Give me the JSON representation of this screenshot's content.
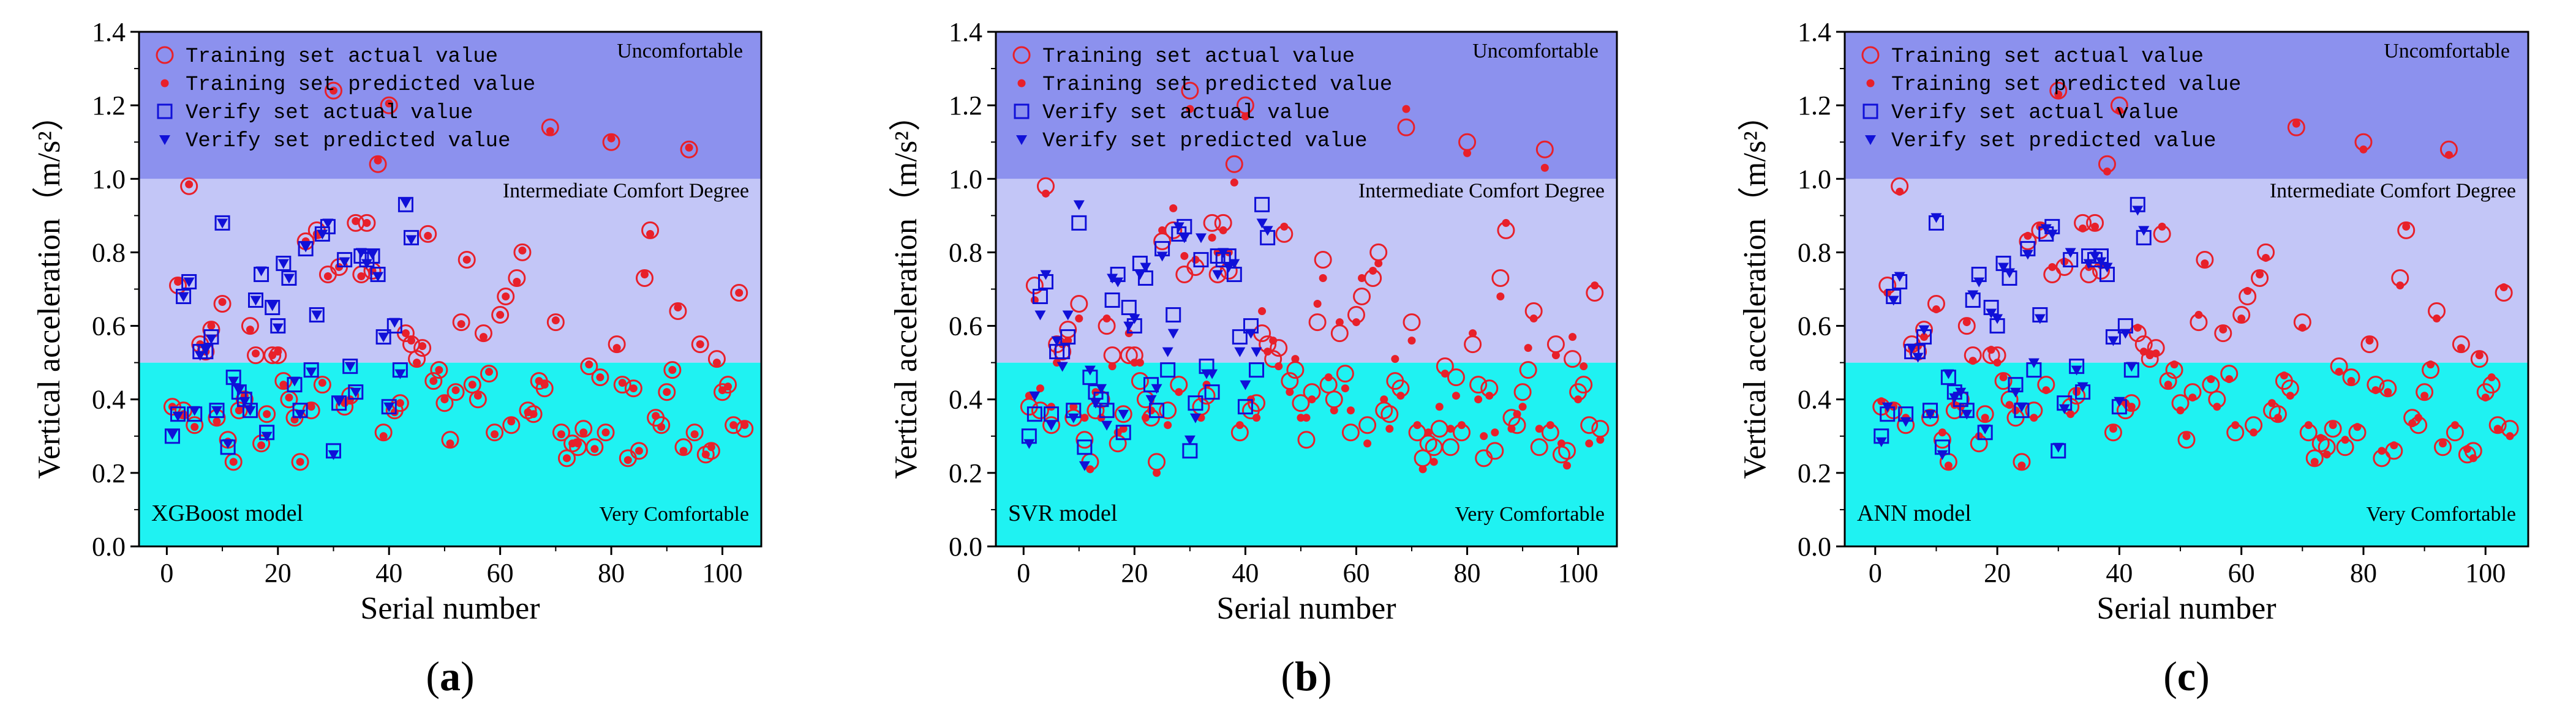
{
  "chart_data": [
    {
      "type": "scatter",
      "panel": "(a)",
      "panel_letter": "a",
      "model": "XGBoost model",
      "xlabel": "Serial number",
      "ylabel": "Vertical acceleration（m/s²）",
      "xlim": [
        -5,
        107
      ],
      "ylim": [
        0,
        1.4
      ],
      "xticks": [
        0,
        20,
        40,
        60,
        80,
        100
      ],
      "yticks": [
        0.0,
        0.2,
        0.4,
        0.6,
        0.8,
        1.0,
        1.2,
        1.4
      ],
      "zones": [
        {
          "label": "Very Comfortable",
          "from": 0.0,
          "to": 0.5,
          "color": "#1ff2f2"
        },
        {
          "label": "Intermediate Comfort Degree",
          "from": 0.5,
          "to": 1.0,
          "color": "#c3c6f7"
        },
        {
          "label": "Uncomfortable",
          "from": 1.0,
          "to": 1.4,
          "color": "#8c91ee"
        }
      ],
      "legend": {
        "position": "top-left",
        "entries": [
          "Training set actual value",
          "Training set predicted value",
          "Verify set actual value",
          "Verify set predicted value"
        ]
      },
      "pred_offsets": [
        0,
        0.01,
        -0.01,
        0.005,
        -0.005,
        0.0
      ]
    },
    {
      "type": "scatter",
      "panel": "(b)",
      "panel_letter": "b",
      "model": "SVR model",
      "xlabel": "Serial number",
      "ylabel": "Vertical acceleration（m/s²）",
      "xlim": [
        -5,
        107
      ],
      "ylim": [
        0,
        1.4
      ],
      "xticks": [
        0,
        20,
        40,
        60,
        80,
        100
      ],
      "yticks": [
        0.0,
        0.2,
        0.4,
        0.6,
        0.8,
        1.0,
        1.2,
        1.4
      ],
      "zones": [
        {
          "label": "Very Comfortable",
          "from": 0.0,
          "to": 0.5,
          "color": "#1ff2f2"
        },
        {
          "label": "Intermediate Comfort Degree",
          "from": 0.5,
          "to": 1.0,
          "color": "#c3c6f7"
        },
        {
          "label": "Uncomfortable",
          "from": 1.0,
          "to": 1.4,
          "color": "#8c91ee"
        }
      ],
      "legend": {
        "position": "top-left",
        "entries": [
          "Training set actual value",
          "Training set predicted value",
          "Verify set actual value",
          "Verify set predicted value"
        ]
      },
      "pred_offsets": [
        0.03,
        -0.04,
        0.06,
        -0.02,
        0.05,
        -0.05,
        0.02,
        -0.03
      ]
    },
    {
      "type": "scatter",
      "panel": "(c)",
      "panel_letter": "c",
      "model": "ANN model",
      "xlabel": "Serial number",
      "ylabel": "Vertical acceleration（m/s²）",
      "xlim": [
        -5,
        107
      ],
      "ylim": [
        0,
        1.4
      ],
      "xticks": [
        0,
        20,
        40,
        60,
        80,
        100
      ],
      "yticks": [
        0.0,
        0.2,
        0.4,
        0.6,
        0.8,
        1.0,
        1.2,
        1.4
      ],
      "zones": [
        {
          "label": "Very Comfortable",
          "from": 0.0,
          "to": 0.5,
          "color": "#1ff2f2"
        },
        {
          "label": "Intermediate Comfort Degree",
          "from": 0.5,
          "to": 1.0,
          "color": "#c3c6f7"
        },
        {
          "label": "Uncomfortable",
          "from": 1.0,
          "to": 1.4,
          "color": "#8c91ee"
        }
      ],
      "legend": {
        "position": "top-left",
        "entries": [
          "Training set actual value",
          "Training set predicted value",
          "Verify set actual value",
          "Verify set predicted value"
        ]
      },
      "pred_offsets": [
        0.015,
        -0.02,
        0.01,
        -0.015,
        0.02,
        -0.01
      ]
    }
  ],
  "training_actual": [
    [
      1,
      0.38
    ],
    [
      2,
      0.71
    ],
    [
      3,
      0.37
    ],
    [
      4,
      0.98
    ],
    [
      5,
      0.33
    ],
    [
      6,
      0.55
    ],
    [
      7,
      0.53
    ],
    [
      8,
      0.59
    ],
    [
      9,
      0.35
    ],
    [
      10,
      0.66
    ],
    [
      11,
      0.29
    ],
    [
      12,
      0.23
    ],
    [
      13,
      0.37
    ],
    [
      14,
      0.4
    ],
    [
      15,
      0.6
    ],
    [
      16,
      0.52
    ],
    [
      17,
      0.28
    ],
    [
      18,
      0.36
    ],
    [
      19,
      0.52
    ],
    [
      20,
      0.52
    ],
    [
      21,
      0.45
    ],
    [
      22,
      0.4
    ],
    [
      23,
      0.35
    ],
    [
      24,
      0.23
    ],
    [
      25,
      0.83
    ],
    [
      26,
      0.37
    ],
    [
      27,
      0.86
    ],
    [
      28,
      0.44
    ],
    [
      29,
      0.74
    ],
    [
      30,
      1.24
    ],
    [
      31,
      0.76
    ],
    [
      32,
      0.38
    ],
    [
      33,
      0.41
    ],
    [
      34,
      0.88
    ],
    [
      35,
      0.74
    ],
    [
      36,
      0.88
    ],
    [
      37,
      0.75
    ],
    [
      38,
      1.04
    ],
    [
      39,
      0.31
    ],
    [
      40,
      1.2
    ],
    [
      41,
      0.37
    ],
    [
      42,
      0.39
    ],
    [
      43,
      0.58
    ],
    [
      44,
      0.55
    ],
    [
      45,
      0.51
    ],
    [
      46,
      0.54
    ],
    [
      47,
      0.85
    ],
    [
      48,
      0.45
    ],
    [
      49,
      0.48
    ],
    [
      50,
      0.39
    ],
    [
      51,
      0.29
    ],
    [
      52,
      0.42
    ],
    [
      53,
      0.61
    ],
    [
      54,
      0.78
    ],
    [
      55,
      0.44
    ],
    [
      56,
      0.4
    ],
    [
      57,
      0.58
    ],
    [
      58,
      0.47
    ],
    [
      59,
      0.31
    ],
    [
      60,
      0.63
    ],
    [
      61,
      0.68
    ],
    [
      62,
      0.33
    ],
    [
      63,
      0.73
    ],
    [
      64,
      0.8
    ],
    [
      65,
      0.37
    ],
    [
      66,
      0.36
    ],
    [
      67,
      0.45
    ],
    [
      68,
      0.43
    ],
    [
      69,
      1.14
    ],
    [
      70,
      0.61
    ],
    [
      71,
      0.31
    ],
    [
      72,
      0.24
    ],
    [
      73,
      0.28
    ],
    [
      74,
      0.27
    ],
    [
      75,
      0.32
    ],
    [
      76,
      0.49
    ],
    [
      77,
      0.27
    ],
    [
      78,
      0.46
    ],
    [
      79,
      0.31
    ],
    [
      80,
      1.1
    ],
    [
      81,
      0.55
    ],
    [
      82,
      0.44
    ],
    [
      83,
      0.24
    ],
    [
      84,
      0.43
    ],
    [
      85,
      0.26
    ],
    [
      86,
      0.73
    ],
    [
      87,
      0.86
    ],
    [
      88,
      0.35
    ],
    [
      89,
      0.33
    ],
    [
      90,
      0.42
    ],
    [
      91,
      0.48
    ],
    [
      92,
      0.64
    ],
    [
      93,
      0.27
    ],
    [
      94,
      1.08
    ],
    [
      95,
      0.31
    ],
    [
      96,
      0.55
    ],
    [
      97,
      0.25
    ],
    [
      98,
      0.26
    ],
    [
      99,
      0.51
    ],
    [
      100,
      0.42
    ],
    [
      101,
      0.44
    ],
    [
      102,
      0.33
    ],
    [
      103,
      0.69
    ],
    [
      104,
      0.32
    ]
  ],
  "verify_actual": [
    [
      1,
      0.3
    ],
    [
      2,
      0.36
    ],
    [
      3,
      0.68
    ],
    [
      4,
      0.72
    ],
    [
      5,
      0.36
    ],
    [
      6,
      0.53
    ],
    [
      7,
      0.53
    ],
    [
      8,
      0.57
    ],
    [
      9,
      0.37
    ],
    [
      10,
      0.88
    ],
    [
      11,
      0.27
    ],
    [
      12,
      0.46
    ],
    [
      13,
      0.42
    ],
    [
      14,
      0.4
    ],
    [
      15,
      0.37
    ],
    [
      16,
      0.67
    ],
    [
      17,
      0.74
    ],
    [
      18,
      0.31
    ],
    [
      19,
      0.65
    ],
    [
      20,
      0.6
    ],
    [
      21,
      0.77
    ],
    [
      22,
      0.73
    ],
    [
      23,
      0.44
    ],
    [
      24,
      0.37
    ],
    [
      25,
      0.81
    ],
    [
      26,
      0.48
    ],
    [
      27,
      0.63
    ],
    [
      28,
      0.85
    ],
    [
      29,
      0.87
    ],
    [
      30,
      0.26
    ],
    [
      31,
      0.39
    ],
    [
      32,
      0.78
    ],
    [
      33,
      0.49
    ],
    [
      34,
      0.42
    ],
    [
      35,
      0.79
    ],
    [
      36,
      0.78
    ],
    [
      37,
      0.79
    ],
    [
      38,
      0.74
    ],
    [
      39,
      0.57
    ],
    [
      40,
      0.38
    ],
    [
      41,
      0.6
    ],
    [
      42,
      0.48
    ],
    [
      43,
      0.93
    ],
    [
      44,
      0.84
    ]
  ],
  "panel_letter_marks": {
    "a": "(a)",
    "b": "(b)",
    "c": "(c)"
  }
}
